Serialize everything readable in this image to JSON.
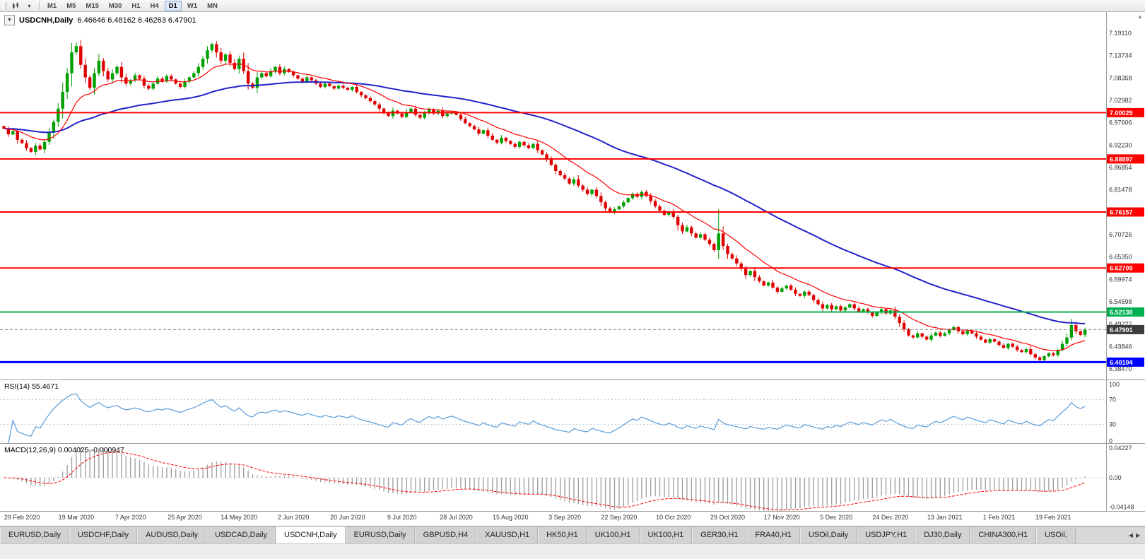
{
  "icons": {
    "one_click": "▼",
    "dropdown": "▾",
    "tab_left": "◀",
    "tab_right": "▶",
    "scroll_up": "▲"
  },
  "toolbar": {
    "timeframes": [
      "M1",
      "M5",
      "M15",
      "M30",
      "H1",
      "H4",
      "D1",
      "W1",
      "MN"
    ],
    "active_timeframe": "D1"
  },
  "tabs": {
    "active_index": 4,
    "items": [
      "EURUSD,Daily",
      "USDCHF,Daily",
      "AUDUSD,Daily",
      "USDCAD,Daily",
      "USDCNH,Daily",
      "EURUSD,Daily",
      "GBPUSD,H4",
      "XAUUSD,H1",
      "HK50,H1",
      "UK100,H1",
      "UK100,H1",
      "GER30,H1",
      "FRA40,H1",
      "USOil,Daily",
      "USDJPY,H1",
      "DJ30,Daily",
      "CHINA300,H1",
      "USOil,"
    ]
  },
  "chart_data": {
    "type": "candlestick",
    "title": "USDCNH,Daily",
    "ohlc_text": "6.46646 6.48162 6.46263 6.47901",
    "open": "6.46646",
    "high": "6.48162",
    "low": "6.46263",
    "close": "6.47901",
    "price_range": [
      6.3575,
      7.242
    ],
    "y_ticks": [
      "7.19110",
      "7.13734",
      "7.08358",
      "7.02982",
      "6.97606",
      "6.92230",
      "6.86854",
      "6.81478",
      "6.76102",
      "6.70726",
      "6.65350",
      "6.59974",
      "6.54598",
      "6.49222",
      "6.43846",
      "6.38470"
    ],
    "x_labels": [
      "29 Feb 2020",
      "19 Mar 2020",
      "7 Apr 2020",
      "25 Apr 2020",
      "14 May 2020",
      "2 Jun 2020",
      "20 Jun 2020",
      "9 Jul 2020",
      "28 Jul 2020",
      "15 Aug 2020",
      "3 Sep 2020",
      "22 Sep 2020",
      "10 Oct 2020",
      "29 Oct 2020",
      "17 Nov 2020",
      "5 Dec 2020",
      "24 Dec 2020",
      "13 Jan 2021",
      "1 Feb 2021",
      "19 Feb 2021"
    ],
    "levels": [
      {
        "value": 7.00029,
        "label": "7.00029",
        "color": "#FF0000",
        "width": 2
      },
      {
        "value": 6.88897,
        "label": "6.88897",
        "color": "#FF0000",
        "width": 2
      },
      {
        "value": 6.76157,
        "label": "6.76157",
        "color": "#FF0000",
        "width": 2
      },
      {
        "value": 6.62709,
        "label": "6.62709",
        "color": "#FF0000",
        "width": 2
      },
      {
        "value": 6.52138,
        "label": "6.52138",
        "color": "#00B050",
        "width": 2
      },
      {
        "value": 6.40104,
        "label": "6.40104",
        "color": "#0000FF",
        "width": 3
      }
    ],
    "current_price": {
      "value": 6.47901,
      "label": "6.47901",
      "color": "#3c3c3c"
    },
    "candle_colors": {
      "up": "#00A000",
      "down": "#E00000"
    },
    "closes": [
      6.962,
      6.948,
      6.956,
      6.935,
      6.927,
      6.915,
      6.906,
      6.921,
      6.912,
      6.93,
      6.952,
      6.978,
      7.01,
      7.05,
      7.095,
      7.145,
      7.16,
      7.115,
      7.085,
      7.06,
      7.095,
      7.125,
      7.1,
      7.08,
      7.095,
      7.11,
      7.085,
      7.07,
      7.078,
      7.09,
      7.082,
      7.065,
      7.058,
      7.07,
      7.082,
      7.075,
      7.088,
      7.08,
      7.07,
      7.062,
      7.075,
      7.085,
      7.095,
      7.11,
      7.13,
      7.15,
      7.165,
      7.145,
      7.125,
      7.14,
      7.12,
      7.105,
      7.13,
      7.1,
      7.07,
      7.06,
      7.085,
      7.095,
      7.088,
      7.1,
      7.11,
      7.095,
      7.105,
      7.098,
      7.09,
      7.082,
      7.075,
      7.085,
      7.078,
      7.07,
      7.062,
      7.07,
      7.064,
      7.058,
      7.065,
      7.06,
      7.055,
      7.062,
      7.05,
      7.042,
      7.035,
      7.028,
      7.02,
      7.01,
      7.0,
      6.992,
      7.005,
      6.998,
      6.99,
      7.002,
      7.01,
      6.995,
      6.988,
      7.0,
      7.008,
      6.998,
      7.005,
      6.992,
      6.998,
      7.002,
      6.995,
      6.985,
      6.975,
      6.968,
      6.96,
      6.95,
      6.958,
      6.945,
      6.935,
      6.928,
      6.94,
      6.932,
      6.925,
      6.918,
      6.93,
      6.922,
      6.915,
      6.925,
      6.91,
      6.9,
      6.888,
      6.875,
      6.86,
      6.85,
      6.842,
      6.83,
      6.84,
      6.825,
      6.815,
      6.805,
      6.815,
      6.8,
      6.785,
      6.77,
      6.76,
      6.768,
      6.775,
      6.785,
      6.795,
      6.805,
      6.798,
      6.81,
      6.8,
      6.788,
      6.775,
      6.765,
      6.755,
      6.762,
      6.75,
      6.73,
      6.715,
      6.725,
      6.71,
      6.7,
      6.708,
      6.695,
      6.685,
      6.67,
      6.71,
      6.68,
      6.66,
      6.65,
      6.638,
      6.625,
      6.61,
      6.62,
      6.605,
      6.595,
      6.585,
      6.592,
      6.58,
      6.57,
      6.578,
      6.585,
      6.575,
      6.565,
      6.56,
      6.57,
      6.562,
      6.55,
      6.54,
      6.53,
      6.538,
      6.528,
      6.535,
      6.525,
      6.532,
      6.54,
      6.53,
      6.522,
      6.528,
      6.52,
      6.512,
      6.52,
      6.528,
      6.518,
      6.525,
      6.51,
      6.495,
      6.48,
      6.465,
      6.46,
      6.47,
      6.462,
      6.455,
      6.465,
      6.472,
      6.464,
      6.47,
      6.478,
      6.485,
      6.475,
      6.468,
      6.476,
      6.47,
      6.462,
      6.455,
      6.448,
      6.456,
      6.45,
      6.442,
      6.435,
      6.445,
      6.438,
      6.43,
      6.425,
      6.432,
      6.42,
      6.412,
      6.406,
      6.415,
      6.422,
      6.418,
      6.43,
      6.445,
      6.46,
      6.49,
      6.475,
      6.4665,
      6.479
    ],
    "special_wicks": {
      "158": {
        "high": 6.768
      },
      "236": {
        "high": 6.505
      },
      "239": {
        "high": 6.48162,
        "low": 6.46263
      }
    },
    "moving_averages": [
      {
        "period": 14,
        "color": "#FF0000",
        "width": 1.2
      },
      {
        "period": 60,
        "color": "#2222CC",
        "width": 2
      }
    ],
    "indicators": {
      "rsi": {
        "label": "RSI(14) 55.4671",
        "period": 14,
        "value": "55.4671",
        "levels": [
          70,
          30
        ],
        "ticks": [
          "100",
          "70",
          "30",
          "0"
        ],
        "color": "#5B9BD5",
        "range": [
          0,
          100
        ]
      },
      "macd": {
        "label": "MACD(12,26,9) 0.004025 -0.000947",
        "fast": 12,
        "slow": 26,
        "signal": 9,
        "values": "0.004025 -0.000947",
        "ticks": [
          "0.04227",
          "0.00",
          "-0.04148"
        ],
        "range": [
          -0.0478,
          0.0478
        ],
        "bar_color": "#9b9b9b",
        "signal_color": "#FF0000"
      }
    }
  }
}
